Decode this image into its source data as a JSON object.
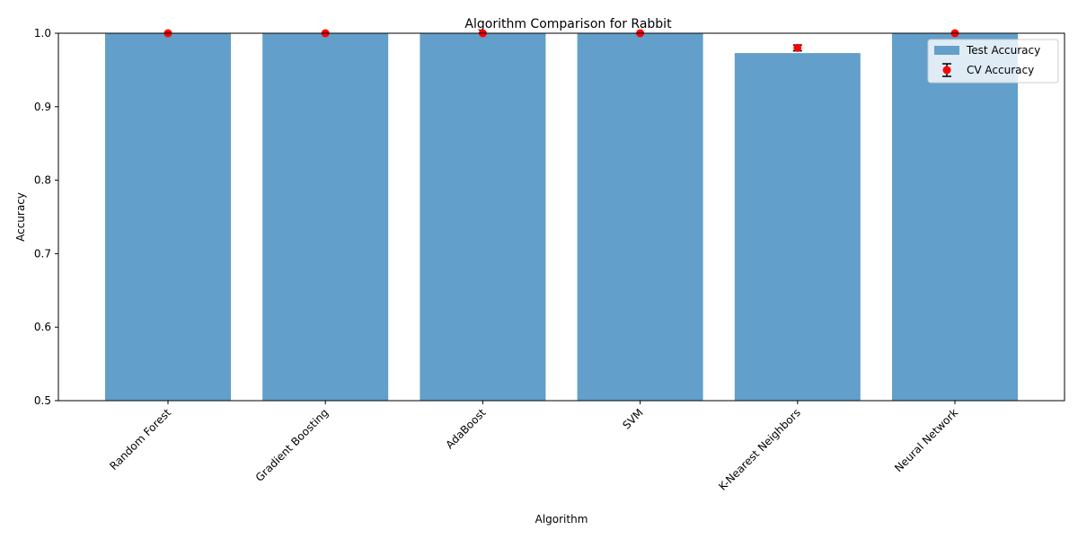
{
  "chart_data": {
    "type": "bar",
    "title": "Algorithm Comparison for Rabbit",
    "xlabel": "Algorithm",
    "ylabel": "Accuracy",
    "ylim": [
      0.5,
      1.0
    ],
    "yticks": [
      "0.5",
      "0.6",
      "0.7",
      "0.8",
      "0.9",
      "1.0"
    ],
    "categories": [
      "Random Forest",
      "Gradient Boosting",
      "AdaBoost",
      "SVM",
      "K-Nearest Neighbors",
      "Neural Network"
    ],
    "series": [
      {
        "name": "Test Accuracy",
        "kind": "bar",
        "color": "#629fca",
        "values": [
          1.0,
          1.0,
          1.0,
          1.0,
          0.973,
          1.0
        ]
      },
      {
        "name": "CV Accuracy",
        "kind": "errorbar",
        "color": "#ff0000",
        "values": [
          1.0,
          1.0,
          1.0,
          1.0,
          0.98,
          1.0
        ],
        "errors": [
          0.0,
          0.0,
          0.0,
          0.0,
          0.004,
          0.0
        ]
      }
    ],
    "legend_position": "top-right",
    "grid": false,
    "tick_label_rotation": 45
  }
}
